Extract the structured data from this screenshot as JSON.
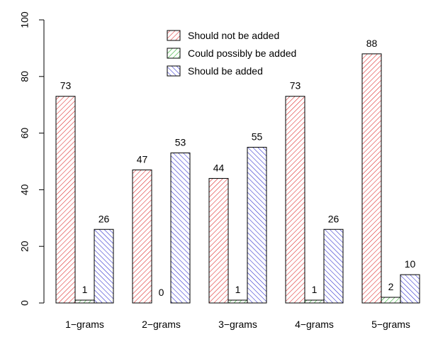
{
  "chart_data": {
    "type": "bar",
    "categories": [
      "1−grams",
      "2−grams",
      "3−grams",
      "4−grams",
      "5−grams"
    ],
    "series": [
      {
        "name": "Should not be added",
        "values": [
          73,
          47,
          44,
          73,
          88
        ],
        "color": "#dd2222",
        "hatch": "diag-45"
      },
      {
        "name": "Could possibly be added",
        "values": [
          1,
          0,
          1,
          1,
          2
        ],
        "color": "#22aa22",
        "hatch": "diag-45"
      },
      {
        "name": "Should be added",
        "values": [
          26,
          53,
          55,
          26,
          10
        ],
        "color": "#2222cc",
        "hatch": "diag-135"
      }
    ],
    "data_labels": [
      [
        "73",
        "47",
        "44",
        "73",
        "88"
      ],
      [
        "1",
        "0",
        "1",
        "1",
        "2"
      ],
      [
        "26",
        "53",
        "55",
        "26",
        "10"
      ]
    ],
    "yticks": [
      "0",
      "20",
      "40",
      "60",
      "80",
      "100"
    ],
    "ylim": [
      0,
      100
    ],
    "title": "",
    "xlabel": "",
    "ylabel": "",
    "legend_position": "top-center",
    "grid": false
  }
}
